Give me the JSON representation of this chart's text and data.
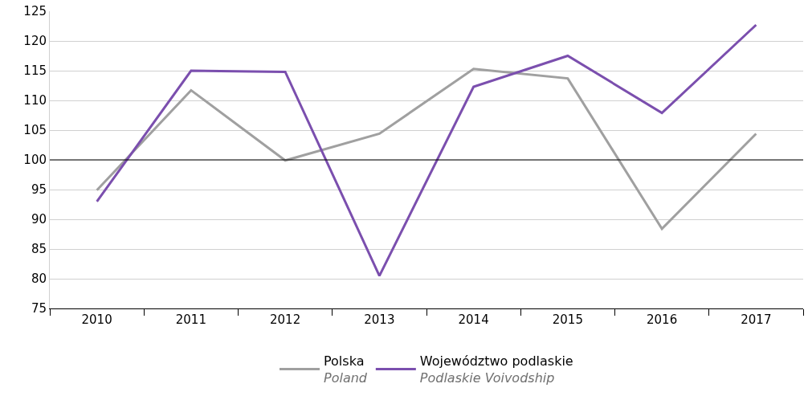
{
  "chart_data": {
    "type": "line",
    "categories": [
      "2010",
      "2011",
      "2012",
      "2013",
      "2014",
      "2015",
      "2016",
      "2017"
    ],
    "series": [
      {
        "name": "Polska\nPoland",
        "color": "#a0a0a0",
        "values": [
          94.9,
          111.7,
          99.9,
          104.4,
          115.3,
          113.7,
          88.4,
          104.4
        ]
      },
      {
        "name": "Województwo podlaskie\nPodlaskie Voivodship",
        "color": "#7b4fae",
        "values": [
          93,
          115,
          114.8,
          80.5,
          112.3,
          117.5,
          107.9,
          122.7
        ]
      }
    ],
    "ylim": [
      75,
      125
    ],
    "yticks": [
      75,
      80,
      85,
      90,
      95,
      100,
      105,
      110,
      115,
      120,
      125
    ],
    "grid": "y",
    "legend": "bottom",
    "marker": "none",
    "line_style": "solid",
    "ref_lines": [
      {
        "axis": "y",
        "value": 100,
        "color": "#000000"
      }
    ]
  }
}
